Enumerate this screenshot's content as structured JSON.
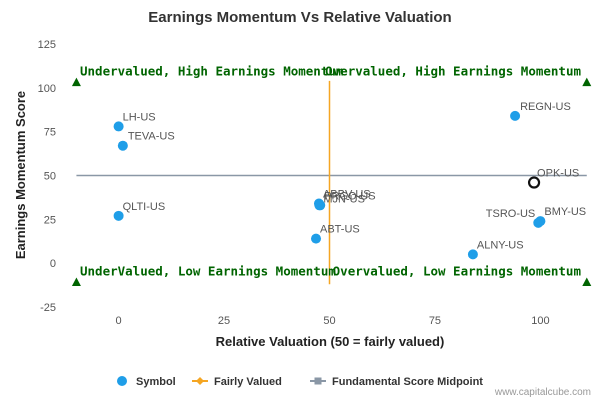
{
  "chart_data": {
    "type": "scatter",
    "title": "Earnings Momentum Vs Relative Valuation",
    "xlabel": "Relative Valuation (50 = fairly valued)",
    "ylabel": "Earnings Momentum Score",
    "xlim": [
      -12,
      112
    ],
    "ylim": [
      -25,
      125
    ],
    "xticks": [
      0,
      25,
      50,
      75,
      100
    ],
    "yticks": [
      -25,
      0,
      25,
      50,
      75,
      100,
      125
    ],
    "grid": false,
    "points": [
      {
        "label": "LH-US",
        "x": 0,
        "y": 78,
        "style": "filled"
      },
      {
        "label": "TEVA-US",
        "x": 1,
        "y": 67,
        "style": "filled"
      },
      {
        "label": "QLTI-US",
        "x": 0,
        "y": 27,
        "style": "filled"
      },
      {
        "label": "ABBV-US",
        "x": 47.5,
        "y": 34,
        "style": "filled"
      },
      {
        "label": "PRGO-US",
        "x": 47.8,
        "y": 33,
        "style": "filled"
      },
      {
        "label": "MJN-US",
        "x": 47.6,
        "y": 33,
        "style": "filled"
      },
      {
        "label": "ABT-US",
        "x": 46.8,
        "y": 14,
        "style": "filled"
      },
      {
        "label": "ALNY-US",
        "x": 84,
        "y": 5,
        "style": "filled"
      },
      {
        "label": "REGN-US",
        "x": 94,
        "y": 84,
        "style": "filled"
      },
      {
        "label": "OPK-US",
        "x": 98.5,
        "y": 46,
        "style": "hollow"
      },
      {
        "label": "TSRO-US",
        "x": 99.5,
        "y": 23,
        "style": "filled"
      },
      {
        "label": "BMY-US",
        "x": 100,
        "y": 24,
        "style": "filled"
      }
    ],
    "fairly_valued_line": {
      "x": 50,
      "y_range": [
        -12,
        104
      ]
    },
    "midpoint_line": {
      "y": 50,
      "x_range": [
        -10,
        111
      ]
    },
    "quadrant_labels": {
      "top_left": "Undervalued, High Earnings Momentum",
      "top_right": "Overvalued, High Earnings Momentum",
      "bottom_left": "UnderValued, Low Earnings Momentum",
      "bottom_right": "Overvalued, Low Earnings Momentum"
    },
    "legend": {
      "position": "bottom",
      "items": [
        {
          "name": "Symbol",
          "marker": "circle",
          "color": "#1f9ee8"
        },
        {
          "name": "Fairly Valued",
          "marker": "diamond-line",
          "color": "#f5a623"
        },
        {
          "name": "Fundamental Score Midpoint",
          "marker": "square-line",
          "color": "#8a97a6"
        }
      ]
    },
    "colors": {
      "points": "#1f9ee8",
      "fairly_valued": "#f5a623",
      "midpoint": "#8a97a6",
      "quadrant_text": "#006400",
      "triangle": "#006400"
    }
  },
  "credit": "www.capitalcube.com"
}
